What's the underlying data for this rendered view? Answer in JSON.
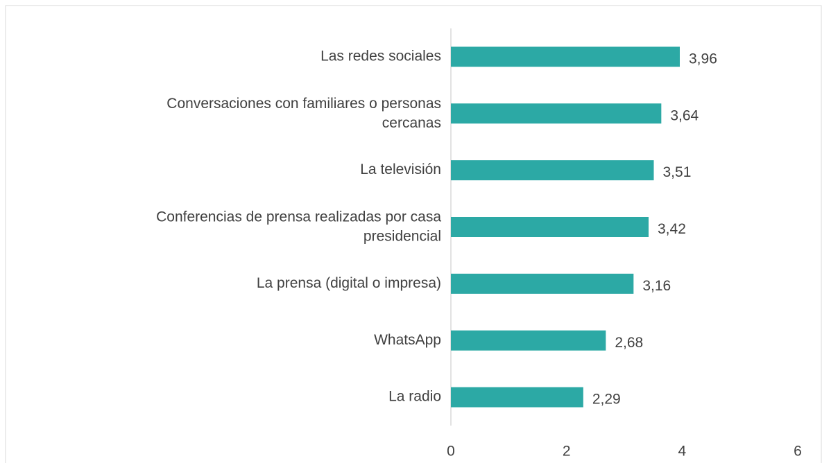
{
  "chart_data": {
    "type": "bar",
    "orientation": "horizontal",
    "categories": [
      "Las redes sociales",
      "Conversaciones con familiares o personas cercanas",
      "La televisión",
      "Conferencias de prensa realizadas por casa presidencial",
      "La prensa (digital o impresa)",
      "WhatsApp",
      "La radio"
    ],
    "values": [
      3.96,
      3.64,
      3.51,
      3.42,
      3.16,
      2.68,
      2.29
    ],
    "value_labels": [
      "3,96",
      "3,64",
      "3,51",
      "3,42",
      "3,16",
      "2,68",
      "2,29"
    ],
    "color": "#2ca9a5",
    "xlim": [
      0,
      6
    ],
    "xticks": [
      0,
      2,
      4,
      6
    ],
    "grid": false
  }
}
